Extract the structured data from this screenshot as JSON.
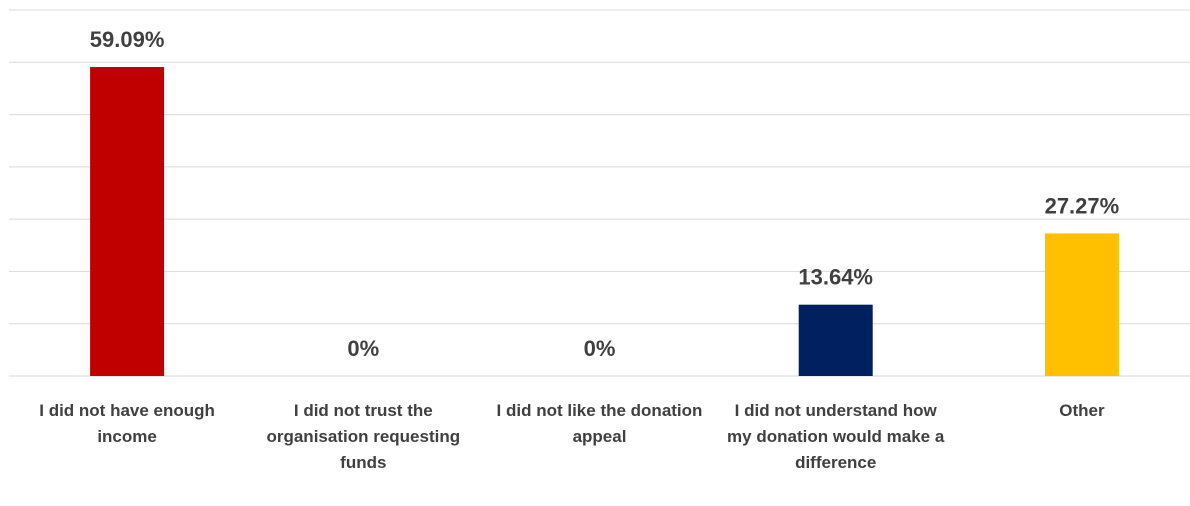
{
  "chart_data": {
    "type": "bar",
    "categories": [
      "I did not have enough income",
      "I did not trust the organisation requesting funds",
      "I did not like the donation appeal",
      "I did not understand how my donation would make a difference",
      "Other"
    ],
    "values": [
      59.09,
      0,
      0,
      13.64,
      27.27
    ],
    "value_labels": [
      "59.09%",
      "0%",
      "0%",
      "13.64%",
      "27.27%"
    ],
    "colors": [
      "#c00000",
      "#c00000",
      "#c00000",
      "#002060",
      "#ffc000"
    ],
    "ylim": [
      0,
      70
    ],
    "yticks": [
      0,
      10,
      20,
      30,
      40,
      50,
      60,
      70
    ],
    "grid": true
  }
}
